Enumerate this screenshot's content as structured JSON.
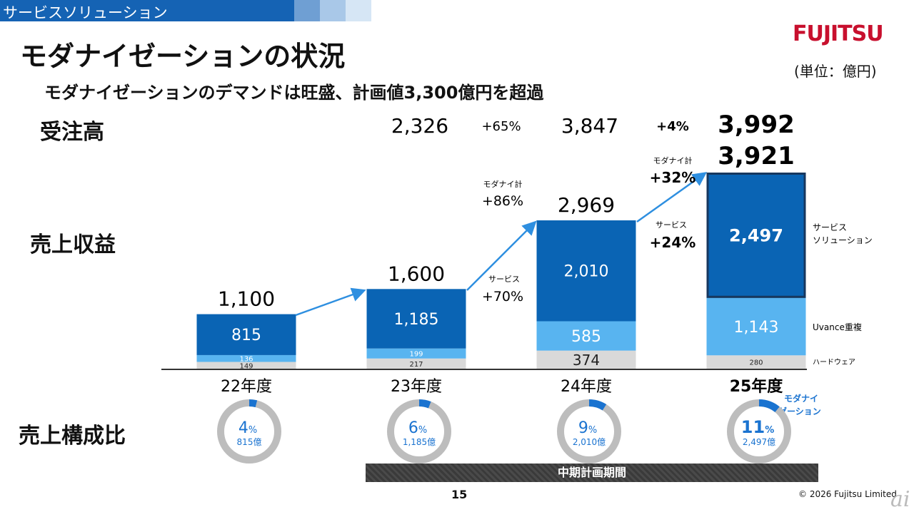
{
  "header": {
    "section": "サービスソリューション",
    "title": "モダナイゼーションの状況",
    "subtitle": "モダナイゼーションのデマンドは旺盛、計画値3,300億円を超過",
    "logo_text": "FUJITSU",
    "unit": "(単位：億円)"
  },
  "row_labels": {
    "orders": "受注高",
    "revenue": "売上収益",
    "composition": "売上構成比"
  },
  "orders": {
    "values": [
      "2,326",
      "3,847",
      "3,992"
    ],
    "changes": [
      "+65%",
      "+4%"
    ]
  },
  "growth_annotations": [
    {
      "label": "サービス",
      "value": "+70%"
    },
    {
      "label": "モダナイ計",
      "value": "+86%"
    },
    {
      "label": "サービス",
      "value": "+24%"
    },
    {
      "label": "モダナイ計",
      "value": "+32%"
    }
  ],
  "segment_labels": [
    "サービス",
    "ソリューション",
    "Uvance重複",
    "ハードウェア"
  ],
  "donut_callout": [
    "モダナイ",
    "ゼーション"
  ],
  "plan_period": "中期計画期間",
  "footer": {
    "page": "15",
    "copyright": "© 2026 Fujitsu Limited",
    "watermark": "ai"
  },
  "colors": {
    "service": "#0a64b4",
    "uvance": "#58b4f0",
    "hardware": "#d9d9d9",
    "arrow": "#2e8fe0",
    "donut_track": "#bdbdbd",
    "donut_fill": "#1a73d0",
    "highlight_border": "#17375e"
  },
  "chart_data": {
    "type": "bar",
    "stacked": true,
    "categories": [
      "22年度",
      "23年度",
      "24年度",
      "25年度"
    ],
    "totals": [
      1100,
      1600,
      2969,
      3921
    ],
    "total_labels": [
      "1,100",
      "1,600",
      "2,969",
      "3,921"
    ],
    "series": [
      {
        "name": "ハードウェア",
        "values": [
          149,
          217,
          374,
          280
        ],
        "labels": [
          "149",
          "217",
          "374",
          "280"
        ]
      },
      {
        "name": "Uvance重複",
        "values": [
          136,
          199,
          585,
          1143
        ],
        "labels": [
          "136",
          "199",
          "585",
          "1,143"
        ]
      },
      {
        "name": "サービス ソリューション",
        "values": [
          815,
          1185,
          2010,
          2497
        ],
        "labels": [
          "815",
          "1,185",
          "2,010",
          "2,497"
        ]
      }
    ],
    "composition": [
      {
        "pct": 4,
        "pct_label": "4",
        "amount": "815億"
      },
      {
        "pct": 6,
        "pct_label": "6",
        "amount": "1,185億"
      },
      {
        "pct": 9,
        "pct_label": "9",
        "amount": "2,010億"
      },
      {
        "pct": 11,
        "pct_label": "11",
        "amount": "2,497億"
      }
    ],
    "percent_sign": "%",
    "ylim": [
      0,
      3921
    ]
  }
}
